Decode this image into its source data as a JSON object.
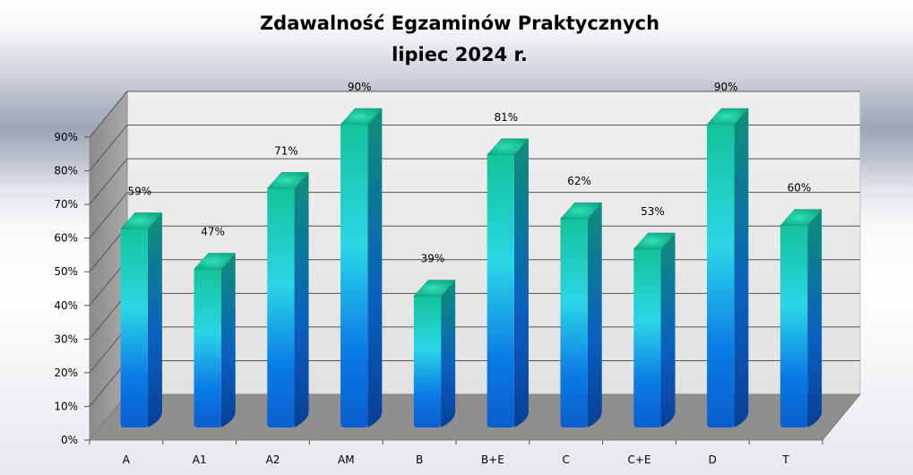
{
  "chart_data": {
    "type": "bar",
    "title": [
      "Zdawalność Egzaminów Praktycznych",
      "lipiec 2024 r."
    ],
    "xlabel": "",
    "ylabel": "",
    "ylim": [
      0,
      90
    ],
    "yticks": [
      "0%",
      "10%",
      "20%",
      "30%",
      "40%",
      "50%",
      "60%",
      "70%",
      "80%",
      "90%"
    ],
    "grid": true,
    "categories": [
      "A",
      "A1",
      "A2",
      "AM",
      "B",
      "B+E",
      "C",
      "C+E",
      "D",
      "T"
    ],
    "values": [
      59,
      47,
      71,
      90,
      39,
      81,
      62,
      53,
      90,
      60
    ],
    "labels": [
      "59%",
      "47%",
      "71%",
      "90%",
      "39%",
      "81%",
      "62%",
      "53%",
      "90%",
      "60%"
    ],
    "colors": {
      "bar_top": "#17c9a3",
      "bar_mid": "#29d4e8",
      "bar_bottom": "#0a6fe0",
      "wall": "#e6e6e6",
      "floor": "#8f8f8f",
      "side": "#9a9a9a"
    }
  }
}
